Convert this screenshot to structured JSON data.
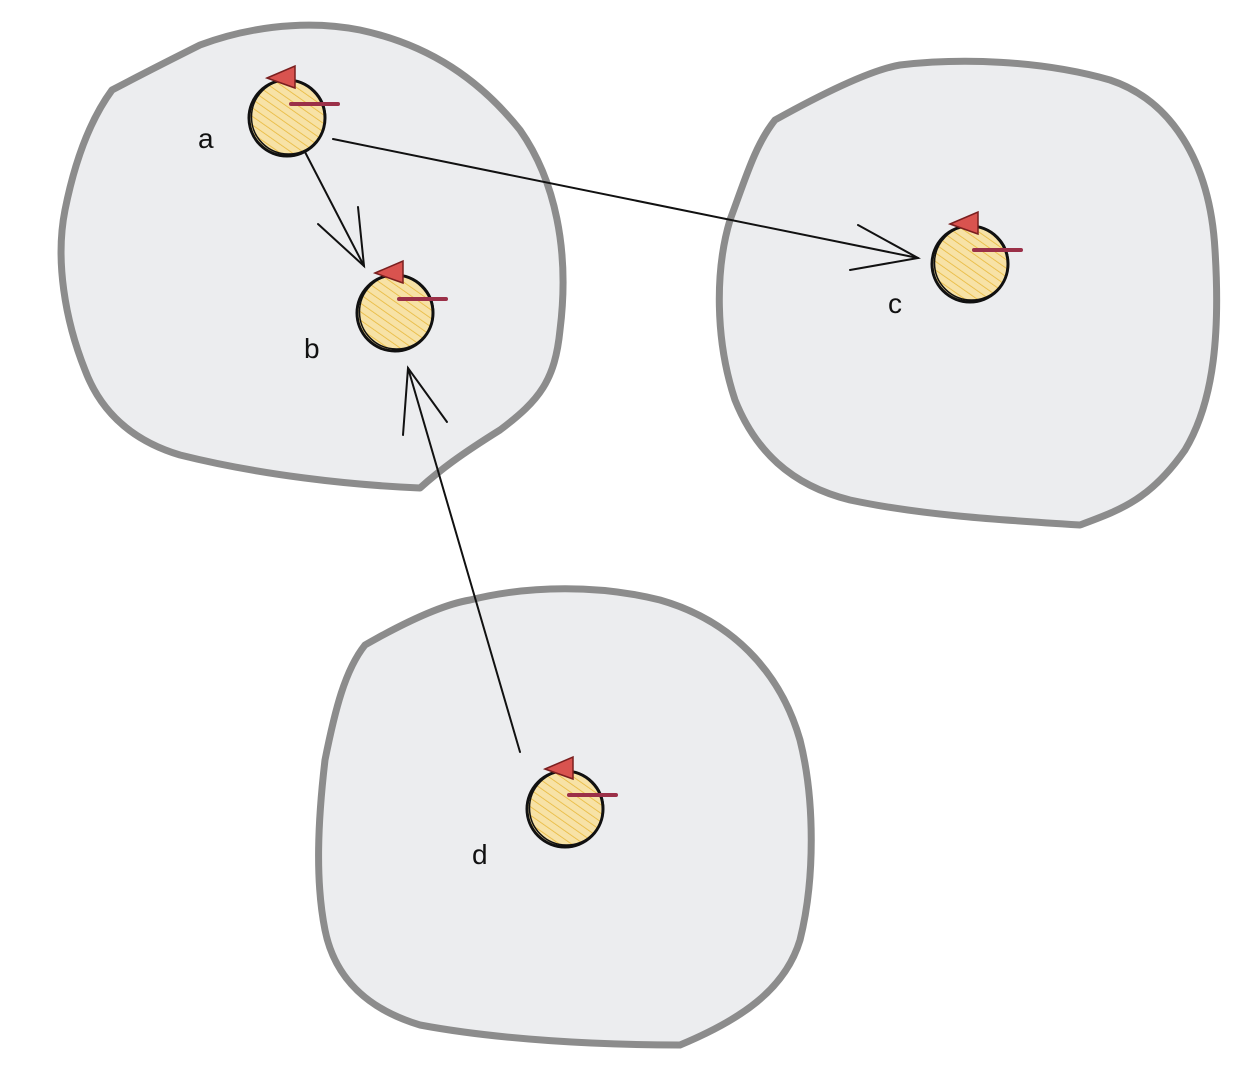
{
  "colors": {
    "blob_fill": "#ECEDEF",
    "blob_stroke": "#8C8C8C",
    "node_fill": "#F5D98E",
    "node_hatch": "#E8B83A",
    "node_stroke": "#111111",
    "pointer_fill": "#D9534F",
    "pointer_bar": "#9B3048",
    "edge_stroke": "#111111"
  },
  "nodes": [
    {
      "id": "a",
      "label": "a"
    },
    {
      "id": "b",
      "label": "b"
    },
    {
      "id": "c",
      "label": "c"
    },
    {
      "id": "d",
      "label": "d"
    }
  ],
  "edges": [
    {
      "from": "a",
      "to": "b"
    },
    {
      "from": "a",
      "to": "c"
    },
    {
      "from": "d",
      "to": "b"
    }
  ]
}
